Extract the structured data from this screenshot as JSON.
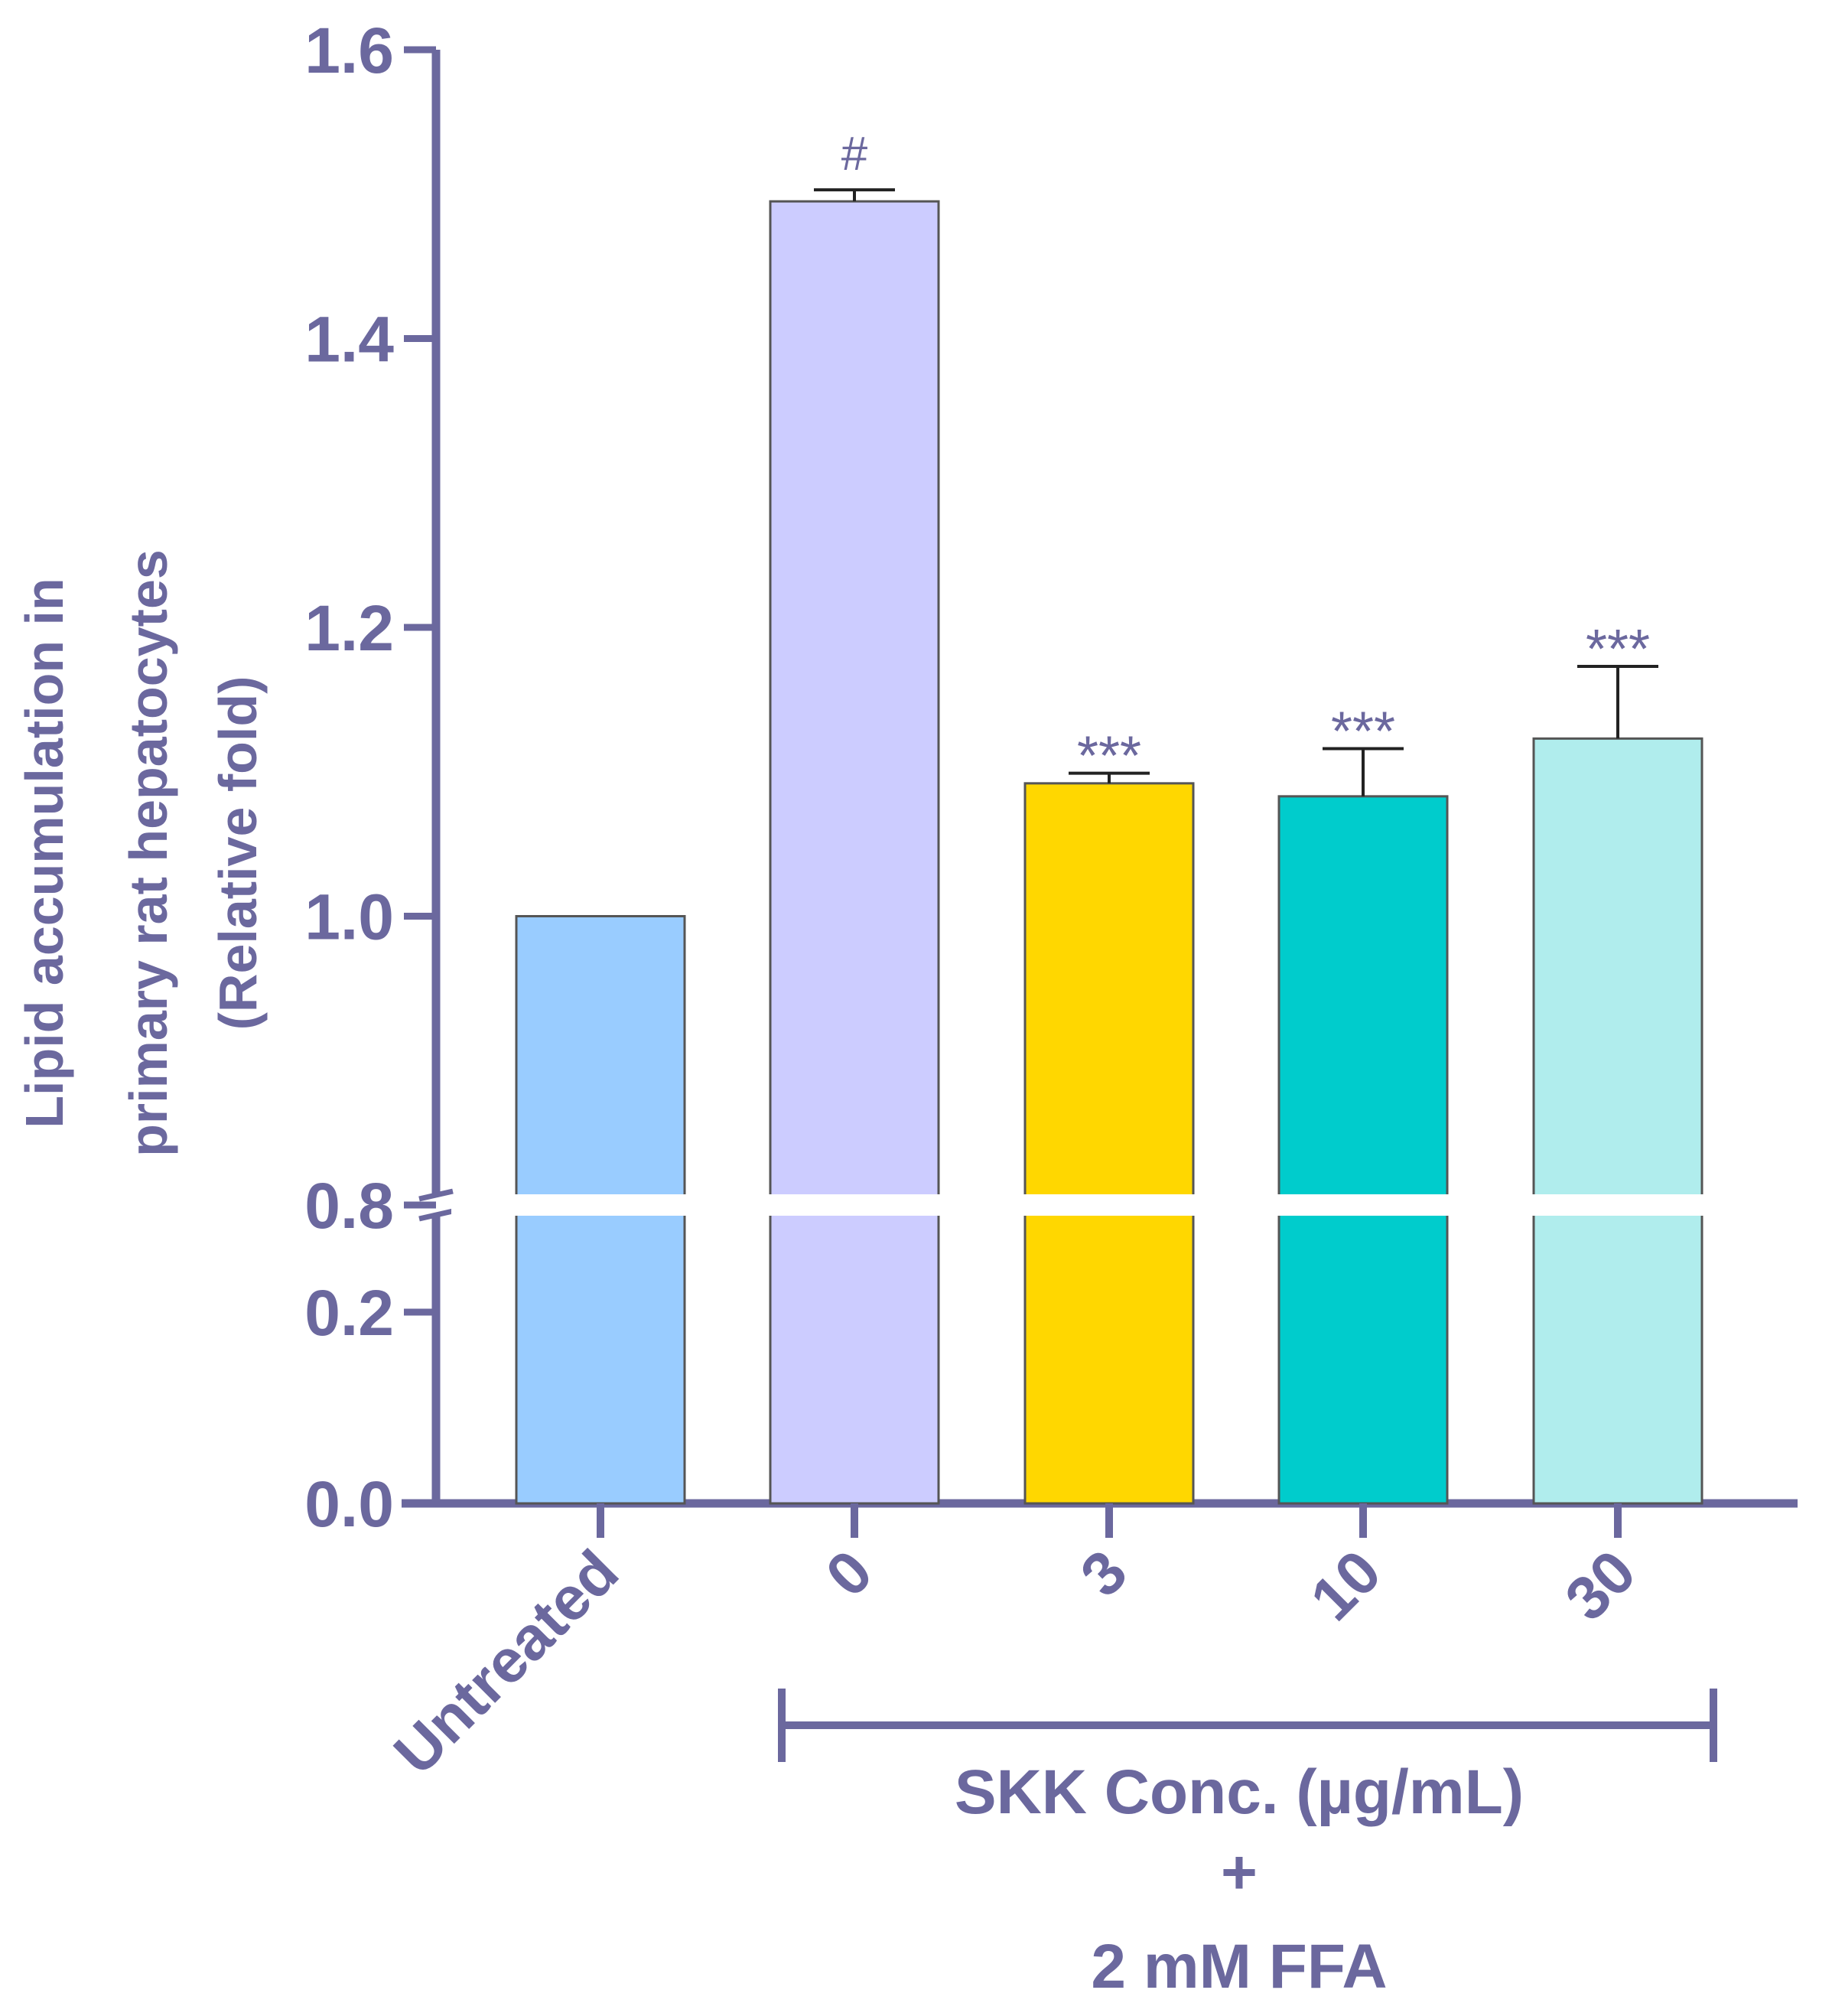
{
  "chart_data": {
    "type": "bar",
    "ylabel_lines": [
      "Lipid accumulation in",
      "primary rat hepatocytes",
      "(Relative fold)"
    ],
    "y_axis_break": {
      "lower_range": [
        0,
        0.2
      ],
      "upper_range": [
        0.8,
        1.6
      ]
    },
    "y_ticks_lower": [
      "0.0",
      "0.2"
    ],
    "y_ticks_upper": [
      "0.8",
      "1.0",
      "1.2",
      "1.4",
      "1.6"
    ],
    "categories": [
      "Untreated",
      "0",
      "3",
      "10",
      "30"
    ],
    "values": [
      1.0,
      1.495,
      1.092,
      1.083,
      1.123
    ],
    "errors": [
      0.0,
      0.008,
      0.007,
      0.033,
      0.05
    ],
    "annotations": [
      "",
      "#",
      "***",
      "***",
      "***"
    ],
    "colors": [
      "#99ccff",
      "#ccccff",
      "#ffd700",
      "#00cccc",
      "#b0eded"
    ],
    "group_bracket": {
      "label_lines": [
        "SKK Conc. (µg/mL)",
        "+",
        "2 mM FFA"
      ],
      "from_category": 1,
      "to_category": 4
    },
    "axis_color": "#6b689e"
  }
}
